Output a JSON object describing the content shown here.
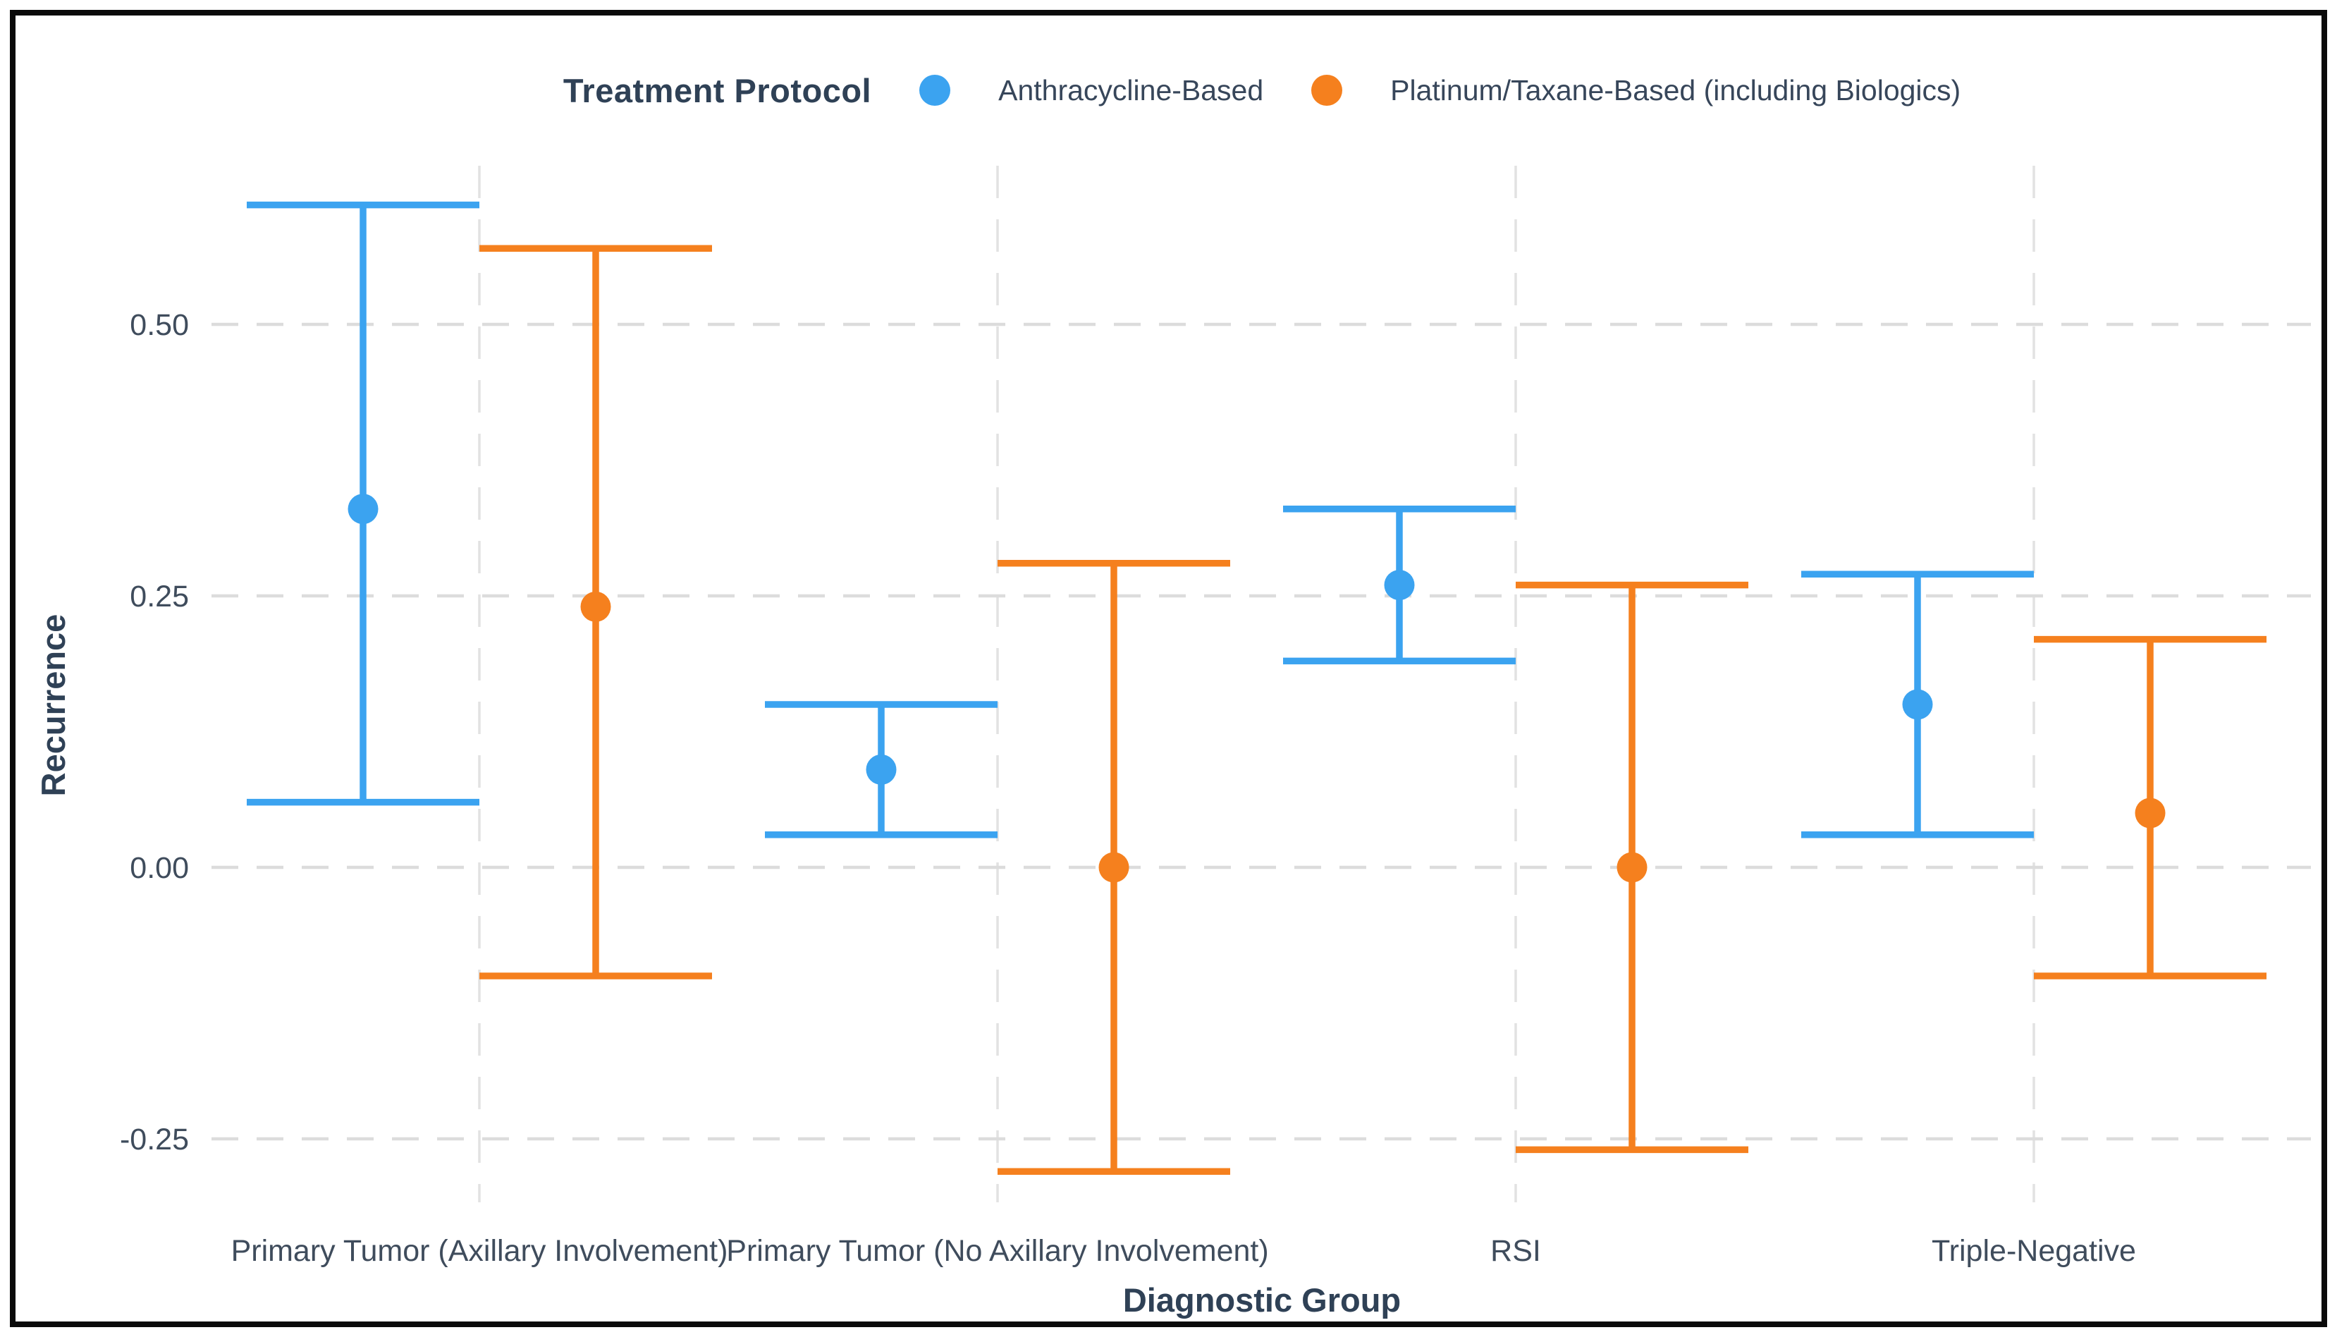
{
  "figure": {
    "background": "#ffffff",
    "border_color": "#0a0a0a"
  },
  "chart_data": {
    "type": "pointrange",
    "legend_title": "Treatment Protocol",
    "legend_position": "top-center",
    "xlabel": "Diagnostic Group",
    "ylabel": "Recurrence",
    "categories": [
      "Primary Tumor (Axillary Involvement)",
      "Primary Tumor (No Axillary Involvement)",
      "RSI",
      "Triple-Negative"
    ],
    "ytick_labels": [
      "0.50",
      "0.25",
      "0.00",
      "-0.25"
    ],
    "ytick_values": [
      0.5,
      0.25,
      0.0,
      -0.25
    ],
    "ylim": [
      -0.31,
      0.66
    ],
    "grid": {
      "horizontal_dashed": true,
      "vertical_dashed_at_categories": true
    },
    "gridline_color": "#dcdcdc",
    "vertical_gridline_color": "#e2e2e2",
    "text_color": "#2f4156",
    "tick_color": "#3f4c5c",
    "series": [
      {
        "name": "Anthracycline-Based",
        "color": "#3ba3f0",
        "points": [
          {
            "category": "Primary Tumor (Axillary Involvement)",
            "mean": 0.33,
            "lo": 0.06,
            "hi": 0.61
          },
          {
            "category": "Primary Tumor (No Axillary Involvement)",
            "mean": 0.09,
            "lo": 0.03,
            "hi": 0.15
          },
          {
            "category": "RSI",
            "mean": 0.26,
            "lo": 0.19,
            "hi": 0.33
          },
          {
            "category": "Triple-Negative",
            "mean": 0.15,
            "lo": 0.03,
            "hi": 0.27
          }
        ]
      },
      {
        "name": "Platinum/Taxane-Based (including Biologics)",
        "color": "#f5801e",
        "points": [
          {
            "category": "Primary Tumor (Axillary Involvement)",
            "mean": 0.24,
            "lo": -0.1,
            "hi": 0.57
          },
          {
            "category": "Primary Tumor (No Axillary Involvement)",
            "mean": 0.0,
            "lo": -0.28,
            "hi": 0.28
          },
          {
            "category": "RSI",
            "mean": 0.0,
            "lo": -0.26,
            "hi": 0.26
          },
          {
            "category": "Triple-Negative",
            "mean": 0.05,
            "lo": -0.1,
            "hi": 0.21
          }
        ]
      }
    ]
  }
}
